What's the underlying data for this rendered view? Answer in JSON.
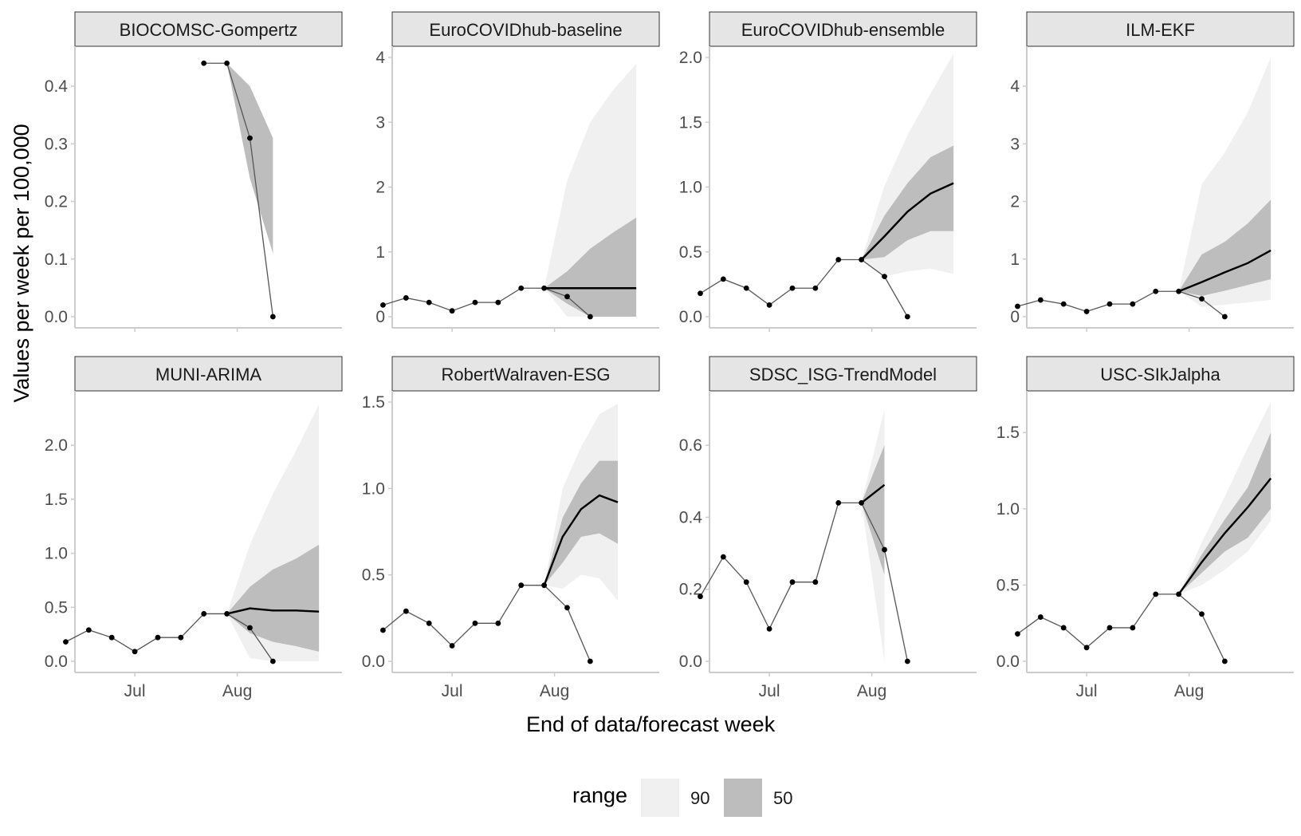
{
  "figure": {
    "ylabel": "Values per week per 100,000",
    "xlabel": "End of data/forecast week",
    "legend": {
      "title": "range",
      "items": [
        {
          "label": "90",
          "color": "#f0f0f0"
        },
        {
          "label": "50",
          "color": "#bdbdbd"
        }
      ]
    },
    "x_ticks": [
      "Jul",
      "Aug"
    ]
  },
  "chart_data": [
    {
      "type": "line",
      "title": "BIOCOMSC-Gompertz",
      "ylim": [
        0,
        0.45
      ],
      "y_ticks": [
        "0.0",
        "0.1",
        "0.2",
        "0.3",
        "0.4"
      ],
      "observed": [
        null,
        null,
        null,
        null,
        null,
        null,
        0.44,
        0.44,
        0.31,
        0.0
      ],
      "median": [],
      "band90": [],
      "band50": [
        {
          "x": 7,
          "lo": 0.44,
          "hi": 0.44
        },
        {
          "x": 8,
          "lo": 0.24,
          "hi": 0.4
        },
        {
          "x": 9,
          "lo": 0.11,
          "hi": 0.31
        }
      ]
    },
    {
      "type": "line",
      "title": "EuroCOVIDhub-baseline",
      "ylim": [
        0,
        4
      ],
      "y_ticks": [
        "0",
        "1",
        "2",
        "3",
        "4"
      ],
      "observed": [
        0.18,
        0.29,
        0.22,
        0.09,
        0.22,
        0.22,
        0.44,
        0.44,
        0.31,
        0.0
      ],
      "median": [
        {
          "x": 7,
          "y": 0.44
        },
        {
          "x": 8,
          "y": 0.44
        },
        {
          "x": 9,
          "y": 0.44
        },
        {
          "x": 10,
          "y": 0.44
        },
        {
          "x": 11,
          "y": 0.44
        }
      ],
      "band90": [
        {
          "x": 7,
          "lo": 0.44,
          "hi": 0.44
        },
        {
          "x": 8,
          "lo": 0.0,
          "hi": 2.1
        },
        {
          "x": 9,
          "lo": 0.0,
          "hi": 3.0
        },
        {
          "x": 10,
          "lo": 0.0,
          "hi": 3.5
        },
        {
          "x": 11,
          "lo": 0.0,
          "hi": 3.9
        }
      ],
      "band50": [
        {
          "x": 7,
          "lo": 0.44,
          "hi": 0.44
        },
        {
          "x": 8,
          "lo": 0.2,
          "hi": 0.7
        },
        {
          "x": 9,
          "lo": 0.0,
          "hi": 1.05
        },
        {
          "x": 10,
          "lo": 0.0,
          "hi": 1.3
        },
        {
          "x": 11,
          "lo": 0.0,
          "hi": 1.53
        }
      ]
    },
    {
      "type": "line",
      "title": "EuroCOVIDhub-ensemble",
      "ylim": [
        0,
        2.0
      ],
      "y_ticks": [
        "0.0",
        "0.5",
        "1.0",
        "1.5",
        "2.0"
      ],
      "observed": [
        0.18,
        0.29,
        0.22,
        0.09,
        0.22,
        0.22,
        0.44,
        0.44,
        0.31,
        0.0
      ],
      "median": [
        {
          "x": 7,
          "y": 0.44
        },
        {
          "x": 8,
          "y": 0.62
        },
        {
          "x": 9,
          "y": 0.81
        },
        {
          "x": 10,
          "y": 0.95
        },
        {
          "x": 11,
          "y": 1.03
        }
      ],
      "band90": [
        {
          "x": 7,
          "lo": 0.44,
          "hi": 0.44
        },
        {
          "x": 8,
          "lo": 0.31,
          "hi": 1.01
        },
        {
          "x": 9,
          "lo": 0.35,
          "hi": 1.4
        },
        {
          "x": 10,
          "lo": 0.37,
          "hi": 1.72
        },
        {
          "x": 11,
          "lo": 0.33,
          "hi": 2.03
        }
      ],
      "band50": [
        {
          "x": 7,
          "lo": 0.44,
          "hi": 0.44
        },
        {
          "x": 8,
          "lo": 0.46,
          "hi": 0.78
        },
        {
          "x": 9,
          "lo": 0.59,
          "hi": 1.03
        },
        {
          "x": 10,
          "lo": 0.66,
          "hi": 1.23
        },
        {
          "x": 11,
          "lo": 0.66,
          "hi": 1.32
        }
      ]
    },
    {
      "type": "line",
      "title": "ILM-EKF",
      "ylim": [
        0,
        4.5
      ],
      "y_ticks": [
        "0",
        "1",
        "2",
        "3",
        "4"
      ],
      "observed": [
        0.18,
        0.29,
        0.22,
        0.09,
        0.22,
        0.22,
        0.44,
        0.44,
        0.31,
        0.0
      ],
      "median": [
        {
          "x": 7,
          "y": 0.44
        },
        {
          "x": 8,
          "y": 0.6
        },
        {
          "x": 9,
          "y": 0.77
        },
        {
          "x": 10,
          "y": 0.93
        },
        {
          "x": 11,
          "y": 1.15
        }
      ],
      "band90": [
        {
          "x": 7,
          "lo": 0.44,
          "hi": 0.44
        },
        {
          "x": 8,
          "lo": 0.17,
          "hi": 2.3
        },
        {
          "x": 9,
          "lo": 0.21,
          "hi": 2.85
        },
        {
          "x": 10,
          "lo": 0.25,
          "hi": 3.55
        },
        {
          "x": 11,
          "lo": 0.29,
          "hi": 4.5
        }
      ],
      "band50": [
        {
          "x": 7,
          "lo": 0.44,
          "hi": 0.44
        },
        {
          "x": 8,
          "lo": 0.36,
          "hi": 1.08
        },
        {
          "x": 9,
          "lo": 0.45,
          "hi": 1.3
        },
        {
          "x": 10,
          "lo": 0.55,
          "hi": 1.62
        },
        {
          "x": 11,
          "lo": 0.65,
          "hi": 2.03
        }
      ]
    },
    {
      "type": "line",
      "title": "MUNI-ARIMA",
      "ylim": [
        0,
        2.4
      ],
      "y_ticks": [
        "0.0",
        "0.5",
        "1.0",
        "1.5",
        "2.0"
      ],
      "observed": [
        0.18,
        0.29,
        0.22,
        0.09,
        0.22,
        0.22,
        0.44,
        0.44,
        0.31,
        0.0
      ],
      "median": [
        {
          "x": 7,
          "y": 0.44
        },
        {
          "x": 8,
          "y": 0.49
        },
        {
          "x": 9,
          "y": 0.47
        },
        {
          "x": 10,
          "y": 0.47
        },
        {
          "x": 11,
          "y": 0.46
        }
      ],
      "band90": [
        {
          "x": 7,
          "lo": 0.44,
          "hi": 0.44
        },
        {
          "x": 8,
          "lo": 0.03,
          "hi": 1.08
        },
        {
          "x": 9,
          "lo": 0.0,
          "hi": 1.55
        },
        {
          "x": 10,
          "lo": 0.0,
          "hi": 1.95
        },
        {
          "x": 11,
          "lo": 0.0,
          "hi": 2.38
        }
      ],
      "band50": [
        {
          "x": 7,
          "lo": 0.44,
          "hi": 0.44
        },
        {
          "x": 8,
          "lo": 0.26,
          "hi": 0.69
        },
        {
          "x": 9,
          "lo": 0.18,
          "hi": 0.85
        },
        {
          "x": 10,
          "lo": 0.14,
          "hi": 0.95
        },
        {
          "x": 11,
          "lo": 0.09,
          "hi": 1.08
        }
      ]
    },
    {
      "type": "line",
      "title": "RobertWalraven-ESG",
      "ylim": [
        0,
        1.5
      ],
      "y_ticks": [
        "0.0",
        "0.5",
        "1.0",
        "1.5"
      ],
      "observed": [
        0.18,
        0.29,
        0.22,
        0.09,
        0.22,
        0.22,
        0.44,
        0.44,
        0.31,
        0.0
      ],
      "median": [
        {
          "x": 7,
          "y": 0.44
        },
        {
          "x": 7.8,
          "y": 0.72
        },
        {
          "x": 8.6,
          "y": 0.88
        },
        {
          "x": 9.4,
          "y": 0.96
        },
        {
          "x": 10.2,
          "y": 0.92
        }
      ],
      "band90": [
        {
          "x": 7,
          "lo": 0.44,
          "hi": 0.44
        },
        {
          "x": 7.8,
          "lo": 0.42,
          "hi": 1.0
        },
        {
          "x": 8.6,
          "lo": 0.5,
          "hi": 1.24
        },
        {
          "x": 9.4,
          "lo": 0.48,
          "hi": 1.43
        },
        {
          "x": 10.2,
          "lo": 0.35,
          "hi": 1.49
        }
      ],
      "band50": [
        {
          "x": 7,
          "lo": 0.44,
          "hi": 0.44
        },
        {
          "x": 7.8,
          "lo": 0.57,
          "hi": 0.83
        },
        {
          "x": 8.6,
          "lo": 0.72,
          "hi": 1.03
        },
        {
          "x": 9.4,
          "lo": 0.74,
          "hi": 1.16
        },
        {
          "x": 10.2,
          "lo": 0.68,
          "hi": 1.16
        }
      ]
    },
    {
      "type": "line",
      "title": "SDSC_ISG-TrendModel",
      "ylim": [
        0,
        0.72
      ],
      "y_ticks": [
        "0.0",
        "0.2",
        "0.4",
        "0.6"
      ],
      "observed": [
        0.18,
        0.29,
        0.22,
        0.09,
        0.22,
        0.22,
        0.44,
        0.44,
        0.31,
        0.0
      ],
      "median": [
        {
          "x": 7,
          "y": 0.44
        },
        {
          "x": 8,
          "y": 0.49
        }
      ],
      "band90": [
        {
          "x": 7,
          "lo": 0.44,
          "hi": 0.44
        },
        {
          "x": 8,
          "lo": 0.0,
          "hi": 0.7
        }
      ],
      "band50": [
        {
          "x": 7,
          "lo": 0.44,
          "hi": 0.44
        },
        {
          "x": 8,
          "lo": 0.24,
          "hi": 0.6
        }
      ]
    },
    {
      "type": "line",
      "title": "USC-SIkJalpha",
      "ylim": [
        0,
        1.7
      ],
      "y_ticks": [
        "0.0",
        "0.5",
        "1.0",
        "1.5"
      ],
      "observed": [
        0.18,
        0.29,
        0.22,
        0.09,
        0.22,
        0.22,
        0.44,
        0.44,
        0.31,
        0.0
      ],
      "median": [
        {
          "x": 7,
          "y": 0.44
        },
        {
          "x": 8,
          "y": 0.65
        },
        {
          "x": 9,
          "y": 0.84
        },
        {
          "x": 10,
          "y": 1.01
        },
        {
          "x": 11,
          "y": 1.2
        }
      ],
      "band90": [
        {
          "x": 7,
          "lo": 0.44,
          "hi": 0.44
        },
        {
          "x": 8,
          "lo": 0.5,
          "hi": 0.78
        },
        {
          "x": 9,
          "lo": 0.6,
          "hi": 1.08
        },
        {
          "x": 10,
          "lo": 0.72,
          "hi": 1.4
        },
        {
          "x": 11,
          "lo": 0.92,
          "hi": 1.7
        }
      ],
      "band50": [
        {
          "x": 7,
          "lo": 0.44,
          "hi": 0.44
        },
        {
          "x": 8,
          "lo": 0.58,
          "hi": 0.7
        },
        {
          "x": 9,
          "lo": 0.72,
          "hi": 0.93
        },
        {
          "x": 10,
          "lo": 0.81,
          "hi": 1.14
        },
        {
          "x": 11,
          "lo": 1.0,
          "hi": 1.5
        }
      ]
    }
  ]
}
